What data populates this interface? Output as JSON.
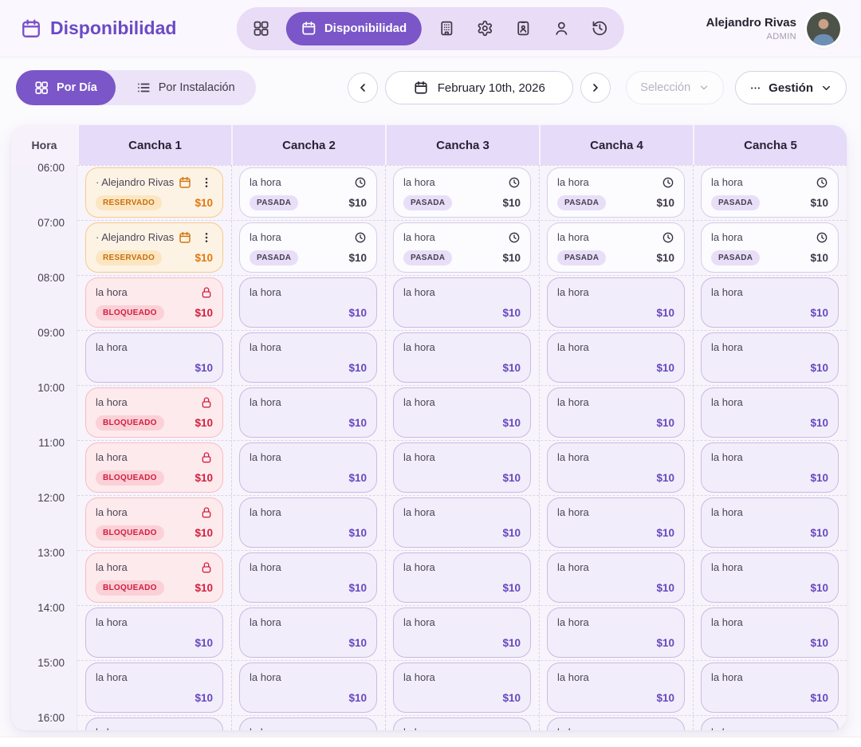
{
  "header": {
    "title": "Disponibilidad",
    "nav_items": [
      {
        "icon": "dashboard-grid-icon"
      },
      {
        "icon": "calendar-icon",
        "label": "Disponibilidad",
        "active": true
      },
      {
        "icon": "building-icon"
      },
      {
        "icon": "gear-icon"
      },
      {
        "icon": "id-badge-icon"
      },
      {
        "icon": "user-icon"
      },
      {
        "icon": "history-icon"
      }
    ],
    "user": {
      "name": "Alejandro Rivas",
      "role": "ADMIN"
    }
  },
  "toolbar": {
    "views": [
      {
        "label": "Por Día",
        "icon": "dashboard-grid-icon",
        "active": true
      },
      {
        "label": "Por Instalación",
        "icon": "list-icon",
        "active": false
      }
    ],
    "date_label": "February 10th, 2026",
    "seleccion": {
      "label": "Selección",
      "disabled": true
    },
    "gestion": {
      "label": "Gestión",
      "icon": "ellipsis-icon"
    }
  },
  "schedule": {
    "hour_header": "Hora",
    "columns": [
      "Cancha 1",
      "Cancha 2",
      "Cancha 3",
      "Cancha 4",
      "Cancha 5"
    ],
    "price": "$10",
    "states": {
      "reserved": {
        "title": "· Alejandro Rivas",
        "label": "RESERVADO",
        "icons": [
          "calendar-icon",
          "kebab-menu-icon"
        ]
      },
      "past": {
        "title": "la hora",
        "label": "PASADA",
        "icons": [
          "clock-icon"
        ]
      },
      "blocked": {
        "title": "la hora",
        "label": "BLOQUEADO",
        "icons": [
          "lock-icon"
        ]
      },
      "available": {
        "title": "la hora",
        "label": "",
        "icons": []
      }
    },
    "rows": [
      {
        "time": "06:00",
        "cells": [
          "reserved",
          "past",
          "past",
          "past",
          "past"
        ]
      },
      {
        "time": "07:00",
        "cells": [
          "reserved",
          "past",
          "past",
          "past",
          "past"
        ]
      },
      {
        "time": "08:00",
        "cells": [
          "blocked",
          "available",
          "available",
          "available",
          "available"
        ]
      },
      {
        "time": "09:00",
        "cells": [
          "available",
          "available",
          "available",
          "available",
          "available"
        ]
      },
      {
        "time": "10:00",
        "cells": [
          "blocked",
          "available",
          "available",
          "available",
          "available"
        ]
      },
      {
        "time": "11:00",
        "cells": [
          "blocked",
          "available",
          "available",
          "available",
          "available"
        ]
      },
      {
        "time": "12:00",
        "cells": [
          "blocked",
          "available",
          "available",
          "available",
          "available"
        ]
      },
      {
        "time": "13:00",
        "cells": [
          "blocked",
          "available",
          "available",
          "available",
          "available"
        ]
      },
      {
        "time": "14:00",
        "cells": [
          "available",
          "available",
          "available",
          "available",
          "available"
        ]
      },
      {
        "time": "15:00",
        "cells": [
          "available",
          "available",
          "available",
          "available",
          "available"
        ]
      },
      {
        "time": "16:00",
        "cells": [
          "available",
          "available",
          "available",
          "available",
          "available"
        ]
      }
    ]
  },
  "colors": {
    "accent_purple": "#7a56c8",
    "title_purple": "#6b4ac5",
    "reserved_orange": "#e4770c",
    "reserved_bg": "#fdf3e4",
    "blocked_red": "#d41f40",
    "blocked_bg": "#fdeaec",
    "past_bg": "#fcfbfe",
    "available_bg": "#f2edfa",
    "available_price": "#6648c0",
    "column_header_bg": "#e6dbf9"
  }
}
